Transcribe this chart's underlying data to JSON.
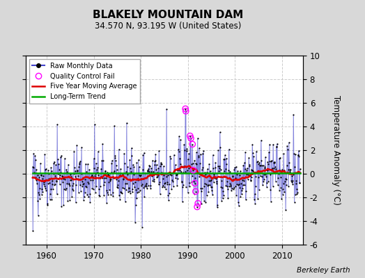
{
  "title": "BLAKELY MOUNTAIN DAM",
  "subtitle": "34.570 N, 93.195 W (United States)",
  "ylabel": "Temperature Anomaly (°C)",
  "credit": "Berkeley Earth",
  "ylim": [
    -6,
    10
  ],
  "yticks": [
    -6,
    -4,
    -2,
    0,
    2,
    4,
    6,
    8,
    10
  ],
  "xlim": [
    1955.5,
    2014.5
  ],
  "xticks": [
    1960,
    1970,
    1980,
    1990,
    2000,
    2010
  ],
  "outer_bg_color": "#d8d8d8",
  "plot_bg_color": "#ffffff",
  "raw_line_color": "#4444cc",
  "raw_dot_color": "#000000",
  "moving_avg_color": "#dd0000",
  "trend_color": "#00aa00",
  "qc_fail_color": "#ff00ff",
  "grid_color": "#cccccc",
  "seed": 42,
  "n_months": 684,
  "start_year": 1957,
  "start_month": 1
}
